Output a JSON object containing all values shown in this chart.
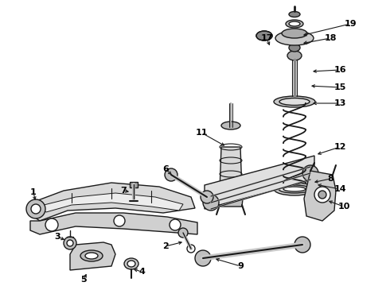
{
  "background_color": "#ffffff",
  "line_color": "#1a1a1a",
  "label_color": "#000000",
  "lw": 1.0,
  "font_size": 7.5,
  "bold_font_size": 8.0
}
